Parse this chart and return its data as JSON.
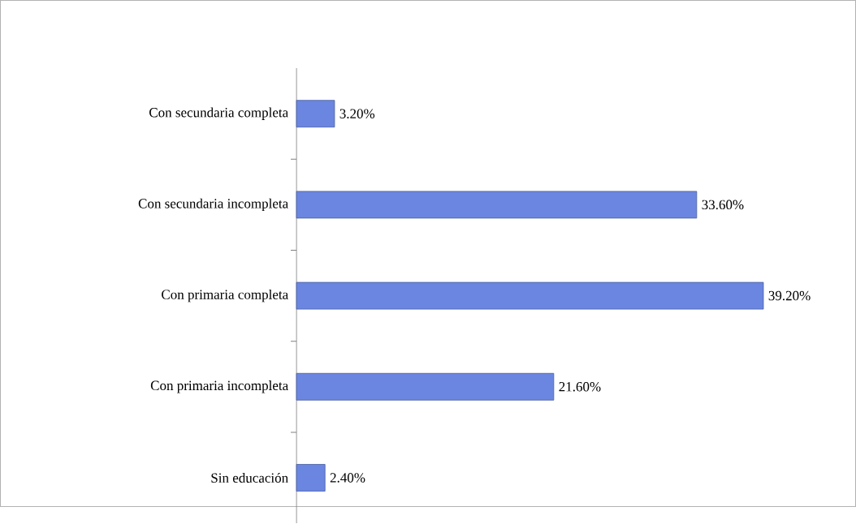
{
  "chart_data": {
    "type": "bar",
    "orientation": "horizontal",
    "categories": [
      "Con secundaria completa",
      "Con secundaria incompleta",
      "Con primaria completa",
      "Con primaria incompleta",
      "Sin educación"
    ],
    "values": [
      3.2,
      33.6,
      39.2,
      21.6,
      2.4
    ],
    "value_labels": [
      "3.20%",
      "33.60%",
      "39.20%",
      "21.60%",
      "2.40%"
    ],
    "color": "#6a86e0"
  }
}
